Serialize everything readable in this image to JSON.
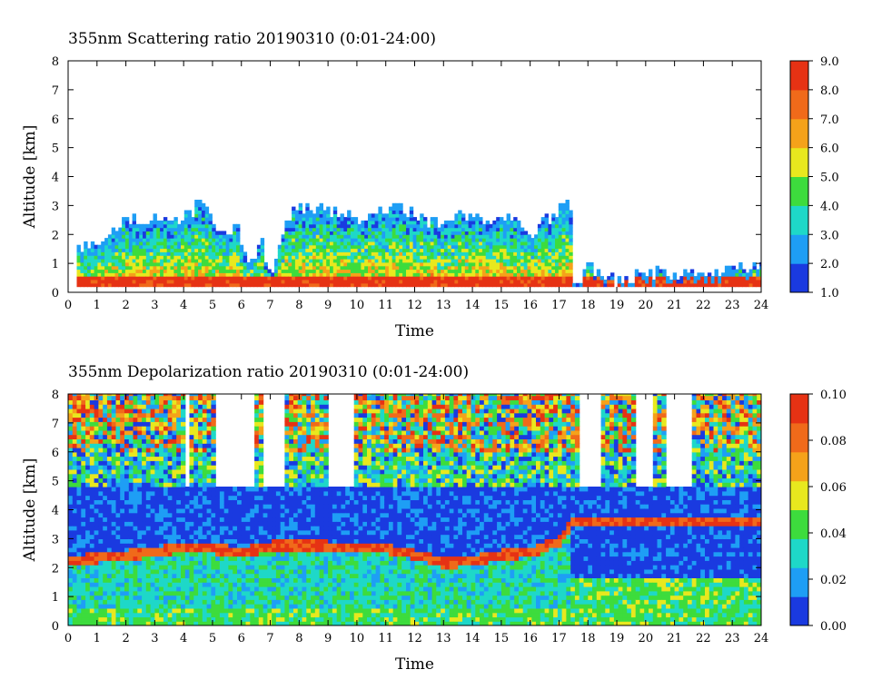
{
  "chart_data": [
    {
      "type": "heatmap",
      "title": "355nm Scattering ratio  20190310 (0:01-24:00)",
      "xlabel": "Time",
      "ylabel": "Altitude [km]",
      "xlim": [
        0,
        24
      ],
      "ylim": [
        0,
        8
      ],
      "x_ticks": [
        "0",
        "1",
        "2",
        "3",
        "4",
        "5",
        "6",
        "7",
        "8",
        "9",
        "10",
        "11",
        "12",
        "13",
        "14",
        "15",
        "16",
        "17",
        "18",
        "19",
        "20",
        "21",
        "22",
        "23",
        "24"
      ],
      "y_ticks": [
        "0",
        "1",
        "2",
        "3",
        "4",
        "5",
        "6",
        "7",
        "8"
      ],
      "colorbar": {
        "min": 1.0,
        "max": 9.0,
        "ticks": [
          "1.0",
          "2.0",
          "3.0",
          "4.0",
          "5.0",
          "6.0",
          "7.0",
          "8.0",
          "9.0"
        ],
        "colors": [
          "#1a3ae0",
          "#1e9ef5",
          "#1ed8c8",
          "#3ddc3d",
          "#e8e81e",
          "#f5a21a",
          "#f06a1a",
          "#e63214"
        ]
      },
      "cloud_profile": {
        "hours": [
          0.3,
          1.0,
          1.5,
          2.0,
          2.5,
          3.0,
          3.5,
          4.0,
          4.5,
          4.8,
          5.3,
          5.8,
          6.2,
          6.6,
          7.0,
          7.5,
          8.0,
          8.5,
          9.0,
          9.5,
          10.0,
          10.5,
          11.0,
          11.5,
          12.0,
          12.5,
          13.0,
          13.5,
          14.0,
          14.5,
          15.0,
          15.5,
          16.0,
          16.5,
          17.0,
          17.3,
          17.6,
          18.0,
          18.5,
          19.0,
          20.0,
          21.0,
          22.0,
          23.0,
          23.9
        ],
        "top_km": [
          1.5,
          1.5,
          2.0,
          2.4,
          2.5,
          2.4,
          2.5,
          2.6,
          3.0,
          2.7,
          2.0,
          2.3,
          0.7,
          1.8,
          0.5,
          2.5,
          2.8,
          2.8,
          2.7,
          2.6,
          2.5,
          2.7,
          2.8,
          2.9,
          2.6,
          2.4,
          2.3,
          2.6,
          2.4,
          2.2,
          2.5,
          2.5,
          2.0,
          2.5,
          2.8,
          3.2,
          0.3,
          0.9,
          0.5,
          0.3,
          0.6,
          0.6,
          0.5,
          0.7,
          0.9
        ]
      }
    },
    {
      "type": "heatmap",
      "title": "355nm Depolarization ratio  20190310 (0:01-24:00)",
      "xlabel": "Time",
      "ylabel": "Altitude [km]",
      "xlim": [
        0,
        24
      ],
      "ylim": [
        0,
        8
      ],
      "x_ticks": [
        "0",
        "1",
        "2",
        "3",
        "4",
        "5",
        "6",
        "7",
        "8",
        "9",
        "10",
        "11",
        "12",
        "13",
        "14",
        "15",
        "16",
        "17",
        "18",
        "19",
        "20",
        "21",
        "22",
        "23",
        "24"
      ],
      "y_ticks": [
        "0",
        "1",
        "2",
        "3",
        "4",
        "5",
        "6",
        "7",
        "8"
      ],
      "colorbar": {
        "min": 0.0,
        "max": 0.1,
        "ticks": [
          "0.00",
          "0.02",
          "0.04",
          "0.06",
          "0.08",
          "0.10"
        ],
        "colors": [
          "#1a3ae0",
          "#1e9ef5",
          "#1ed8c8",
          "#3ddc3d",
          "#e8e81e",
          "#f5a21a",
          "#f06a1a",
          "#e63214"
        ]
      },
      "layer_profile": {
        "hours": [
          0.0,
          1.0,
          2.0,
          3.0,
          4.0,
          5.0,
          6.0,
          7.0,
          8.0,
          9.0,
          10.0,
          11.0,
          12.0,
          13.0,
          14.0,
          15.0,
          16.0,
          17.0,
          17.3
        ],
        "depol_layer_km": [
          2.3,
          2.4,
          2.5,
          2.6,
          2.8,
          2.7,
          2.6,
          2.8,
          2.8,
          2.8,
          2.7,
          2.7,
          2.5,
          2.2,
          2.3,
          2.5,
          2.6,
          3.0,
          3.5
        ]
      },
      "white_gaps_hours": [
        [
          3.9,
          4.1
        ],
        [
          5.1,
          6.4
        ],
        [
          6.7,
          7.4
        ],
        [
          9.0,
          9.9
        ],
        [
          17.6,
          18.4
        ],
        [
          19.6,
          20.1
        ],
        [
          20.6,
          21.5
        ]
      ]
    }
  ]
}
